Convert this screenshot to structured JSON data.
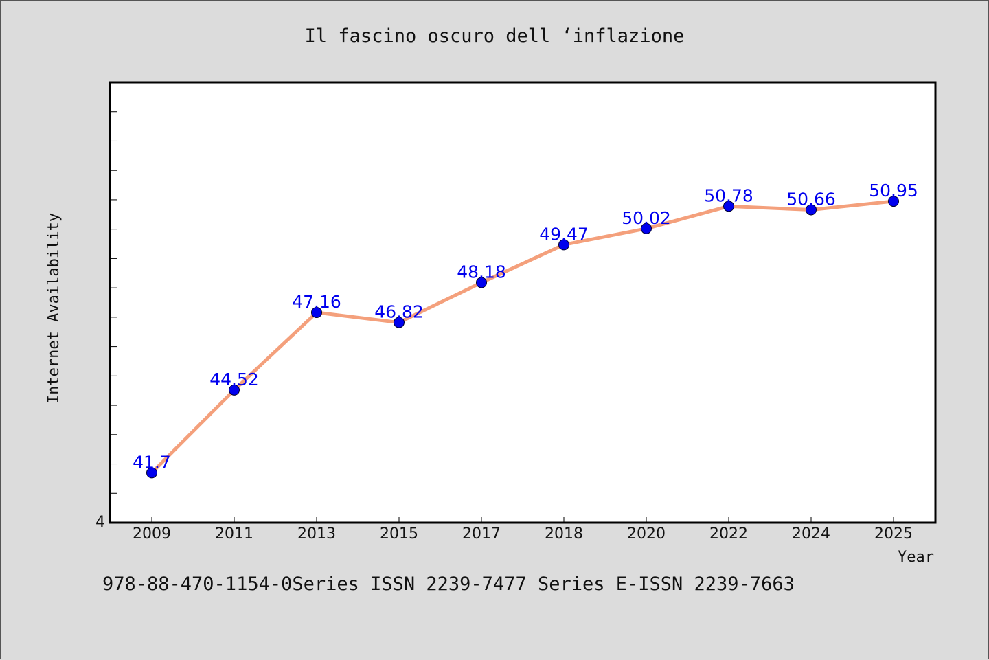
{
  "title": "Il fascino oscuro dell ‘inflazione",
  "footer": "978-88-470-1154-0Series ISSN 2239-7477 Series E-ISSN 2239-7663",
  "colors": {
    "line": "#f4a07c",
    "marker": "#0000ee",
    "label": "#0000ee"
  },
  "chart_data": {
    "type": "line",
    "title": "Il fascino oscuro dell ‘inflazione",
    "xlabel": "Year",
    "ylabel": "Internet Availability",
    "categories": [
      "2009",
      "2011",
      "2013",
      "2015",
      "2017",
      "2018",
      "2020",
      "2022",
      "2024",
      "2025"
    ],
    "values": [
      41.7,
      44.52,
      47.16,
      46.82,
      48.18,
      49.47,
      50.02,
      50.78,
      50.66,
      50.95
    ],
    "data_labels": [
      "41.7",
      "44.52",
      "47.16",
      "46.82",
      "48.18",
      "49.47",
      "50.02",
      "50.78",
      "50.66",
      "50.95"
    ],
    "ylim": [
      40,
      55
    ],
    "y_tick_labels": [
      "4"
    ],
    "grid": false,
    "legend": "none"
  }
}
